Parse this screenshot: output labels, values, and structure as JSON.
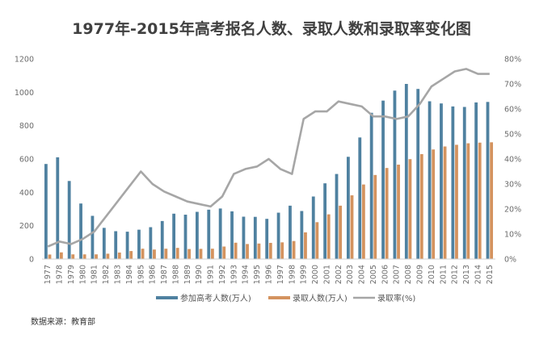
{
  "chart_data": {
    "type": "bar",
    "title": "1977年-2015年高考报名人数、录取人数和录取率变化图",
    "categories": [
      "1977",
      "1978",
      "1979",
      "1980",
      "1981",
      "1982",
      "1983",
      "1984",
      "1985",
      "1986",
      "1987",
      "1988",
      "1989",
      "1990",
      "1991",
      "1992",
      "1993",
      "1994",
      "1995",
      "1996",
      "1997",
      "1998",
      "1999",
      "2000",
      "2001",
      "2002",
      "2003",
      "2004",
      "2005",
      "2006",
      "2007",
      "2008",
      "2009",
      "2010",
      "2011",
      "2012",
      "2013",
      "2014",
      "2015"
    ],
    "series": [
      {
        "name": "参加高考人数(万人)",
        "kind": "bar",
        "axis": "left",
        "color": "#4f81a0",
        "values": [
          570,
          610,
          468,
          333,
          259,
          187,
          167,
          164,
          176,
          191,
          228,
          272,
          266,
          283,
          296,
          303,
          286,
          254,
          253,
          241,
          278,
          320,
          288,
          375,
          454,
          510,
          613,
          729,
          877,
          950,
          1010,
          1050,
          1020,
          946,
          933,
          915,
          912,
          939,
          942
        ]
      },
      {
        "name": "录取人数(万人)",
        "kind": "bar",
        "axis": "left",
        "color": "#d4935f",
        "values": [
          27,
          40,
          28,
          28,
          28,
          32,
          39,
          48,
          62,
          57,
          62,
          67,
          60,
          61,
          62,
          75,
          98,
          90,
          93,
          97,
          100,
          108,
          160,
          221,
          268,
          320,
          382,
          447,
          504,
          546,
          566,
          599,
          629,
          657,
          675,
          685,
          694,
          698,
          700
        ]
      },
      {
        "name": "录取率(%)",
        "kind": "line",
        "axis": "right",
        "color": "#a6a6a6",
        "values": [
          5,
          7,
          6,
          8,
          11,
          17,
          23,
          29,
          35,
          30,
          27,
          25,
          23,
          22,
          21,
          25,
          34,
          36,
          37,
          40,
          36,
          34,
          56,
          59,
          59,
          63,
          62,
          61,
          57,
          57,
          56,
          57,
          62,
          69,
          72,
          75,
          76,
          74,
          74
        ]
      }
    ],
    "y_left": {
      "min": 0,
      "max": 1200,
      "ticks": [
        "0",
        "200",
        "400",
        "600",
        "800",
        "1000",
        "1200"
      ]
    },
    "y_right": {
      "min": 0,
      "max": 80,
      "ticks": [
        "0%",
        "10%",
        "20%",
        "30%",
        "40%",
        "50%",
        "60%",
        "70%",
        "80%"
      ]
    },
    "grid": false,
    "legend": "bottom",
    "source_note": "数据来源：教育部"
  },
  "colors": {
    "bar_apply": "#4f81a0",
    "bar_admit": "#d4935f",
    "line_rate": "#a6a6a6"
  }
}
